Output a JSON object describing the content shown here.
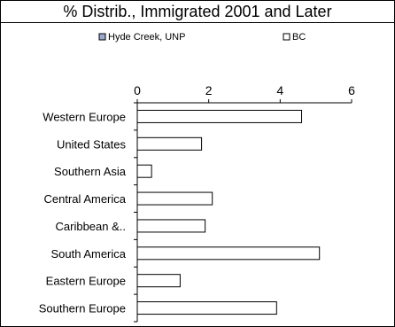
{
  "chart_data": {
    "type": "bar",
    "orientation": "horizontal",
    "title": "% Distrib., Immigrated 2001 and Later",
    "categories": [
      "Western Europe",
      "United States",
      "Southern Asia",
      "Central America",
      "Caribbean &..",
      "South America",
      "Eastern Europe",
      "Southern Europe"
    ],
    "series": [
      {
        "name": "Hyde Creek, UNP",
        "values": [
          0,
          0,
          0,
          0,
          0,
          0,
          0,
          0
        ],
        "color": "#99aacc"
      },
      {
        "name": "BC",
        "values": [
          4.6,
          1.8,
          0.4,
          2.1,
          1.9,
          5.1,
          1.2,
          3.9
        ],
        "color": "#ffffff"
      }
    ],
    "xlim": [
      0,
      6
    ],
    "xticks": [
      0,
      2,
      4,
      6
    ],
    "xaxis_position": "top",
    "legend_position": "top",
    "grid": false
  }
}
